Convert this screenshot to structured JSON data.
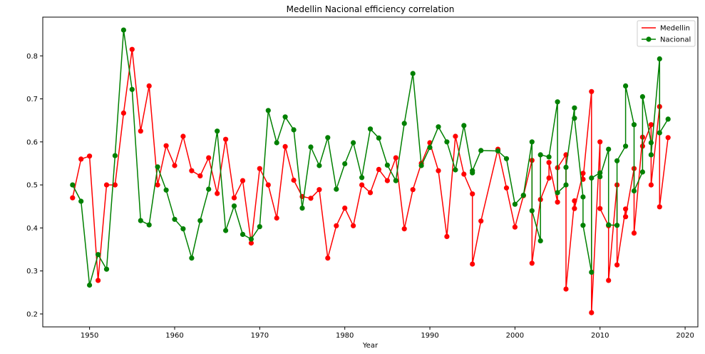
{
  "chart_data": {
    "type": "line",
    "title": "Medellin Nacional efficiency correlation",
    "xlabel": "Year",
    "ylabel": "",
    "xlim": [
      1944.5,
      2021.5
    ],
    "ylim": [
      0.17,
      0.89
    ],
    "xticks": [
      1950,
      1960,
      1970,
      1980,
      1990,
      2000,
      2010,
      2020
    ],
    "yticks": [
      0.2,
      0.3,
      0.4,
      0.5,
      0.6,
      0.7,
      0.8
    ],
    "xtick_labels": [
      "1950",
      "1960",
      "1970",
      "1980",
      "1990",
      "2000",
      "2010",
      "2020"
    ],
    "ytick_labels": [
      "0.2",
      "0.3",
      "0.4",
      "0.5",
      "0.6",
      "0.7",
      "0.8"
    ],
    "grid": false,
    "legend_position": "top-right",
    "series": [
      {
        "name": "Medellin",
        "color": "#ff0000",
        "points": [
          [
            1948,
            0.47
          ],
          [
            1949,
            0.56
          ],
          [
            1950,
            0.567
          ],
          [
            1951,
            0.278
          ],
          [
            1952,
            0.5
          ],
          [
            1953,
            0.5
          ],
          [
            1954,
            0.667
          ],
          [
            1955,
            0.815
          ],
          [
            1956,
            0.625
          ],
          [
            1957,
            0.73
          ],
          [
            1958,
            0.5
          ],
          [
            1959,
            0.591
          ],
          [
            1960,
            0.545
          ],
          [
            1961,
            0.613
          ],
          [
            1962,
            0.533
          ],
          [
            1963,
            0.521
          ],
          [
            1964,
            0.563
          ],
          [
            1965,
            0.48
          ],
          [
            1966,
            0.606
          ],
          [
            1967,
            0.47
          ],
          [
            1968,
            0.51
          ],
          [
            1969,
            0.365
          ],
          [
            1970,
            0.538
          ],
          [
            1971,
            0.5
          ],
          [
            1972,
            0.423
          ],
          [
            1973,
            0.589
          ],
          [
            1974,
            0.511
          ],
          [
            1975,
            0.473
          ],
          [
            1976,
            0.469
          ],
          [
            1977,
            0.489
          ],
          [
            1978,
            0.33
          ],
          [
            1979,
            0.405
          ],
          [
            1980,
            0.446
          ],
          [
            1981,
            0.405
          ],
          [
            1982,
            0.5
          ],
          [
            1983,
            0.482
          ],
          [
            1984,
            0.536
          ],
          [
            1985,
            0.51
          ],
          [
            1986,
            0.563
          ],
          [
            1987,
            0.398
          ],
          [
            1988,
            0.489
          ],
          [
            1989,
            0.55
          ],
          [
            1990,
            0.598
          ],
          [
            1991,
            0.533
          ],
          [
            1992,
            0.38
          ],
          [
            1993,
            0.613
          ],
          [
            1994,
            0.525
          ],
          [
            1995,
            0.479
          ],
          [
            1995,
            0.316
          ],
          [
            1996,
            0.416
          ],
          [
            1998,
            0.583
          ],
          [
            1999,
            0.493
          ],
          [
            2000,
            0.402
          ],
          [
            2001,
            0.475
          ],
          [
            2002,
            0.557
          ],
          [
            2002,
            0.318
          ],
          [
            2003,
            0.466
          ],
          [
            2004,
            0.516
          ],
          [
            2004,
            0.552
          ],
          [
            2005,
            0.46
          ],
          [
            2005,
            0.54
          ],
          [
            2006,
            0.57
          ],
          [
            2006,
            0.258
          ],
          [
            2007,
            0.463
          ],
          [
            2007,
            0.445
          ],
          [
            2008,
            0.527
          ],
          [
            2008,
            0.513
          ],
          [
            2009,
            0.717
          ],
          [
            2009,
            0.203
          ],
          [
            2010,
            0.6
          ],
          [
            2010,
            0.445
          ],
          [
            2011,
            0.405
          ],
          [
            2011,
            0.278
          ],
          [
            2012,
            0.5
          ],
          [
            2012,
            0.314
          ],
          [
            2013,
            0.444
          ],
          [
            2013,
            0.426
          ],
          [
            2014,
            0.538
          ],
          [
            2014,
            0.388
          ],
          [
            2015,
            0.611
          ],
          [
            2015,
            0.59
          ],
          [
            2016,
            0.64
          ],
          [
            2016,
            0.5
          ],
          [
            2017,
            0.682
          ],
          [
            2017,
            0.449
          ],
          [
            2018,
            0.61
          ]
        ]
      },
      {
        "name": "Nacional",
        "color": "#008000",
        "points": [
          [
            1948,
            0.5
          ],
          [
            1949,
            0.462
          ],
          [
            1950,
            0.267
          ],
          [
            1951,
            0.338
          ],
          [
            1952,
            0.304
          ],
          [
            1953,
            0.568
          ],
          [
            1954,
            0.86
          ],
          [
            1955,
            0.722
          ],
          [
            1956,
            0.417
          ],
          [
            1957,
            0.407
          ],
          [
            1958,
            0.542
          ],
          [
            1959,
            0.488
          ],
          [
            1960,
            0.42
          ],
          [
            1961,
            0.398
          ],
          [
            1962,
            0.33
          ],
          [
            1963,
            0.417
          ],
          [
            1964,
            0.49
          ],
          [
            1965,
            0.625
          ],
          [
            1966,
            0.394
          ],
          [
            1967,
            0.451
          ],
          [
            1968,
            0.385
          ],
          [
            1969,
            0.374
          ],
          [
            1970,
            0.403
          ],
          [
            1971,
            0.673
          ],
          [
            1972,
            0.598
          ],
          [
            1973,
            0.658
          ],
          [
            1974,
            0.628
          ],
          [
            1975,
            0.446
          ],
          [
            1976,
            0.588
          ],
          [
            1977,
            0.545
          ],
          [
            1978,
            0.61
          ],
          [
            1979,
            0.49
          ],
          [
            1980,
            0.549
          ],
          [
            1981,
            0.598
          ],
          [
            1982,
            0.517
          ],
          [
            1983,
            0.63
          ],
          [
            1984,
            0.609
          ],
          [
            1985,
            0.546
          ],
          [
            1986,
            0.51
          ],
          [
            1987,
            0.643
          ],
          [
            1988,
            0.759
          ],
          [
            1989,
            0.545
          ],
          [
            1990,
            0.587
          ],
          [
            1991,
            0.635
          ],
          [
            1992,
            0.6
          ],
          [
            1993,
            0.535
          ],
          [
            1994,
            0.638
          ],
          [
            1995,
            0.528
          ],
          [
            1995,
            0.533
          ],
          [
            1996,
            0.58
          ],
          [
            1998,
            0.579
          ],
          [
            1999,
            0.561
          ],
          [
            2000,
            0.455
          ],
          [
            2001,
            0.476
          ],
          [
            2002,
            0.6
          ],
          [
            2002,
            0.44
          ],
          [
            2003,
            0.37
          ],
          [
            2003,
            0.57
          ],
          [
            2004,
            0.565
          ],
          [
            2005,
            0.693
          ],
          [
            2005,
            0.482
          ],
          [
            2006,
            0.5
          ],
          [
            2006,
            0.541
          ],
          [
            2007,
            0.679
          ],
          [
            2007,
            0.655
          ],
          [
            2008,
            0.472
          ],
          [
            2008,
            0.406
          ],
          [
            2009,
            0.297
          ],
          [
            2009,
            0.516
          ],
          [
            2010,
            0.528
          ],
          [
            2010,
            0.519
          ],
          [
            2011,
            0.583
          ],
          [
            2011,
            0.407
          ],
          [
            2012,
            0.406
          ],
          [
            2012,
            0.556
          ],
          [
            2013,
            0.59
          ],
          [
            2013,
            0.73
          ],
          [
            2014,
            0.64
          ],
          [
            2014,
            0.486
          ],
          [
            2015,
            0.53
          ],
          [
            2015,
            0.705
          ],
          [
            2016,
            0.598
          ],
          [
            2016,
            0.57
          ],
          [
            2017,
            0.793
          ],
          [
            2017,
            0.621
          ],
          [
            2018,
            0.653
          ]
        ]
      }
    ]
  }
}
